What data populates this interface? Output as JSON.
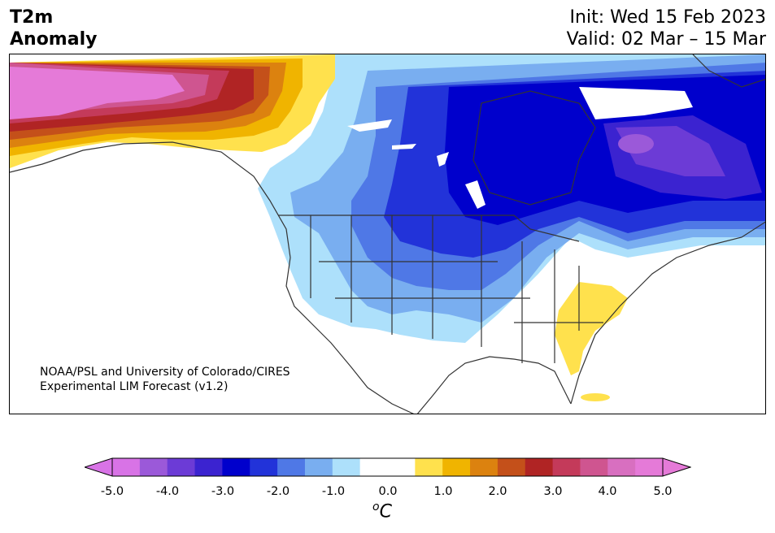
{
  "header": {
    "title_line1": "T2m",
    "title_line2": "Anomaly",
    "init": "Init: Wed 15 Feb 2023",
    "valid": "Valid: 02 Mar – 15 Mar"
  },
  "credit": {
    "line1": "NOAA/PSL and University of Colorado/CIRES",
    "line2": "Experimental LIM Forecast (v1.2)"
  },
  "colorbar": {
    "unit_base": "C",
    "unit_sup": "o",
    "ticks": [
      "-5.0",
      "-4.0",
      "-3.0",
      "-2.0",
      "-1.0",
      "0.0",
      "1.0",
      "2.0",
      "3.0",
      "4.0",
      "5.0"
    ],
    "colors": [
      "#d873e6",
      "#9b59d9",
      "#6c3bd6",
      "#3b23d0",
      "#0000cc",
      "#2233d9",
      "#4f78e6",
      "#79aef0",
      "#ade0fb",
      "#ffffff",
      "#ffffff",
      "#ffe14d",
      "#f0b400",
      "#dc820f",
      "#c4501a",
      "#b02424",
      "#c43a5a",
      "#cf5590",
      "#d86fc0",
      "#e57ad8"
    ],
    "under_color": "#d873e6",
    "over_color": "#e57ad8"
  }
}
